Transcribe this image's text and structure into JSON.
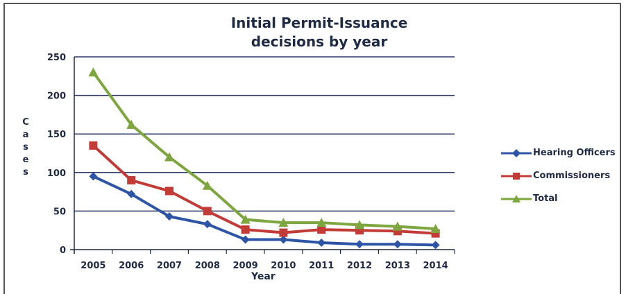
{
  "chart_data": {
    "type": "line",
    "title": "Initial Permit-Issuance decisions by year",
    "xlabel": "Year",
    "ylabel": "Cases",
    "categories": [
      "2005",
      "2006",
      "2007",
      "2008",
      "2009",
      "2010",
      "2011",
      "2012",
      "2013",
      "2014"
    ],
    "ylim": [
      0,
      250
    ],
    "yticks": [
      "0",
      "50",
      "100",
      "150",
      "200",
      "250"
    ],
    "grid": true,
    "legend_position": "right",
    "series": [
      {
        "name": "Hearing Officers",
        "color": "#2e55a5",
        "marker": "diamond",
        "values": [
          95,
          72,
          43,
          33,
          13,
          13,
          9,
          7,
          7,
          6
        ]
      },
      {
        "name": "Commissioners",
        "color": "#c23b37",
        "marker": "square",
        "values": [
          135,
          90,
          76,
          50,
          26,
          22,
          26,
          25,
          24,
          21
        ]
      },
      {
        "name": "Total",
        "color": "#7ea63e",
        "marker": "triangle",
        "values": [
          230,
          162,
          120,
          83,
          39,
          35,
          35,
          32,
          30,
          27
        ]
      }
    ]
  }
}
